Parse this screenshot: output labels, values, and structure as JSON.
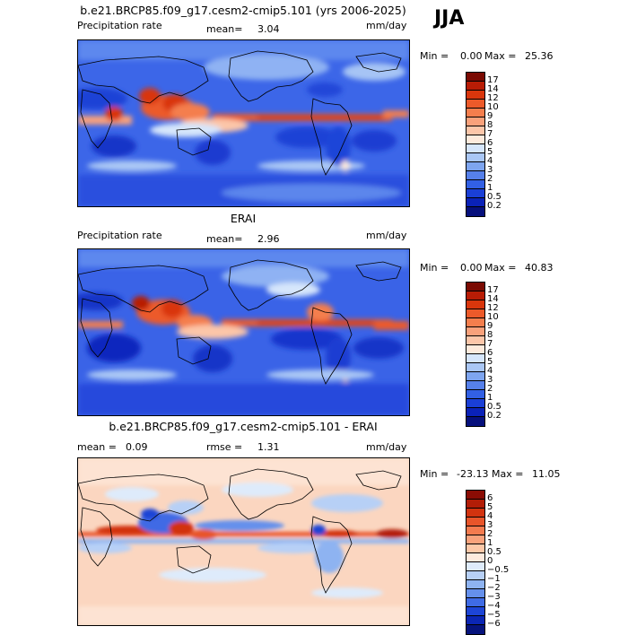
{
  "season": "JJA",
  "panels": [
    {
      "title": "b.e21.BRCP85.f09_g17.cesm2-cmip5.101 (yrs 2006-2025)",
      "left_label": "Precipitation rate",
      "mean_label": "mean=",
      "mean_value": "3.04",
      "units": "mm/day",
      "min_label": "Min =",
      "min_value": "0.00",
      "max_label": "Max =",
      "max_value": "25.36"
    },
    {
      "title": "ERAI",
      "left_label": "Precipitation rate",
      "mean_label": "mean=",
      "mean_value": "2.96",
      "units": "mm/day",
      "min_label": "Min =",
      "min_value": "0.00",
      "max_label": "Max =",
      "max_value": "40.83"
    },
    {
      "title": "b.e21.BRCP85.f09_g17.cesm2-cmip5.101 - ERAI",
      "mean_label": "mean =",
      "mean_value": "0.09",
      "rmse_label": "rmse =",
      "rmse_value": "1.31",
      "units": "mm/day",
      "min_label": "Min =",
      "min_value": "-23.13",
      "max_label": "Max =",
      "max_value": "11.05"
    }
  ],
  "colorbar_precip": {
    "labels": [
      "17",
      "14",
      "12",
      "10",
      "9",
      "8",
      "7",
      "6",
      "5",
      "4",
      "3",
      "2",
      "1",
      "0.5",
      "0.2"
    ],
    "colors": [
      "#7a0a02",
      "#b81c05",
      "#d9360c",
      "#ec5a2a",
      "#f47e4d",
      "#f9a17b",
      "#fcc6a9",
      "#fdeadc",
      "#d6e6fb",
      "#aac7f5",
      "#7ea5ef",
      "#5680ea",
      "#3260e4",
      "#1a3fd6",
      "#0a22b8",
      "#06107c"
    ]
  },
  "colorbar_diff": {
    "labels": [
      "6",
      "5",
      "4",
      "3",
      "2",
      "1",
      "0.5",
      "0",
      "−0.5",
      "−1",
      "−2",
      "−3",
      "−4",
      "−5",
      "−6"
    ],
    "colors": [
      "#8a0c04",
      "#b21d07",
      "#d2330f",
      "#e8552a",
      "#f47b4f",
      "#f9a27c",
      "#fdc8a8",
      "#feeade",
      "#deebfb",
      "#b7d0f6",
      "#8eb3f1",
      "#6590ec",
      "#3f6be5",
      "#1d45d6",
      "#0b26b4",
      "#06137d"
    ]
  }
}
